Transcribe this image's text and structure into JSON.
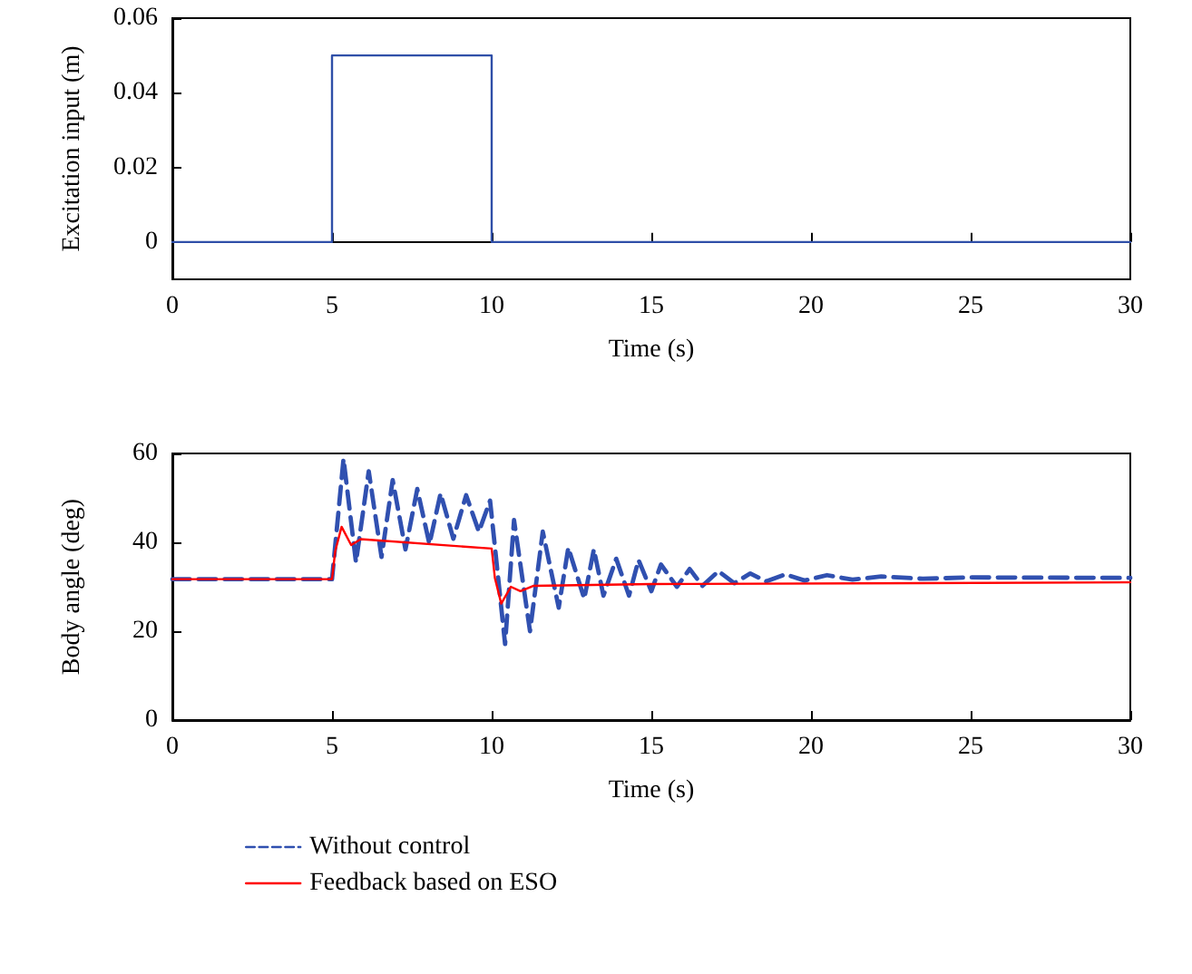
{
  "chart_data": [
    {
      "type": "line",
      "xlabel": "Time (s)",
      "ylabel": "Excitation input (m)",
      "xlim": [
        0,
        30
      ],
      "xticks": [
        0,
        5,
        10,
        15,
        20,
        25,
        30
      ],
      "ylim": [
        -0.01,
        0.06
      ],
      "yticks": [
        0,
        0.02,
        0.04,
        0.06
      ],
      "legend": false,
      "series": [
        {
          "color": "#2f4fa8",
          "line_style": "solid",
          "x": [
            0,
            5,
            5,
            10,
            10,
            30
          ],
          "values": [
            0,
            0,
            0.05,
            0.05,
            0,
            0
          ]
        }
      ]
    },
    {
      "type": "line",
      "xlabel": "Time (s)",
      "ylabel": "Body angle (deg)",
      "xlim": [
        0,
        30
      ],
      "xticks": [
        0,
        5,
        10,
        15,
        20,
        25,
        30
      ],
      "ylim": [
        0,
        60
      ],
      "yticks": [
        0,
        20,
        40,
        60
      ],
      "legend": "bottom",
      "series": [
        {
          "name": "Without control",
          "color": "#3050b0",
          "line_style": "dashed",
          "x": [
            0,
            5,
            5.36,
            5.75,
            6.15,
            6.55,
            6.9,
            7.3,
            7.67,
            8.05,
            8.4,
            8.8,
            9.2,
            9.6,
            9.95,
            10.42,
            10.7,
            11.2,
            11.6,
            12.1,
            12.4,
            12.9,
            13.2,
            13.5,
            13.9,
            14.3,
            14.6,
            15.0,
            15.3,
            15.8,
            16.2,
            16.6,
            17.1,
            17.6,
            18.1,
            18.6,
            19.2,
            19.8,
            20.5,
            21.3,
            22.2,
            23.5,
            25,
            30
          ],
          "values": [
            31.7,
            31.7,
            58.8,
            35.5,
            56,
            36.7,
            54,
            38.4,
            52,
            39.6,
            51,
            40.8,
            50.6,
            42.4,
            49.4,
            17.1,
            45,
            20,
            42.4,
            25.3,
            38.8,
            27.3,
            38.4,
            28,
            36.3,
            28,
            36,
            29,
            35,
            30,
            34,
            30.2,
            33.5,
            30.8,
            33,
            31.2,
            32.8,
            31.4,
            32.6,
            31.6,
            32.3,
            31.8,
            32.1,
            32
          ]
        },
        {
          "name": "Feedback based on ESO",
          "color": "#ff0000",
          "line_style": "solid",
          "x": [
            0,
            5,
            5.1,
            5.3,
            5.6,
            5.9,
            10,
            10.1,
            10.3,
            10.6,
            10.9,
            11.3,
            15,
            30
          ],
          "values": [
            31.7,
            31.7,
            38,
            43.5,
            39.4,
            40.7,
            38.6,
            32,
            26.2,
            30,
            29,
            30.2,
            30.6,
            31
          ]
        }
      ]
    }
  ]
}
